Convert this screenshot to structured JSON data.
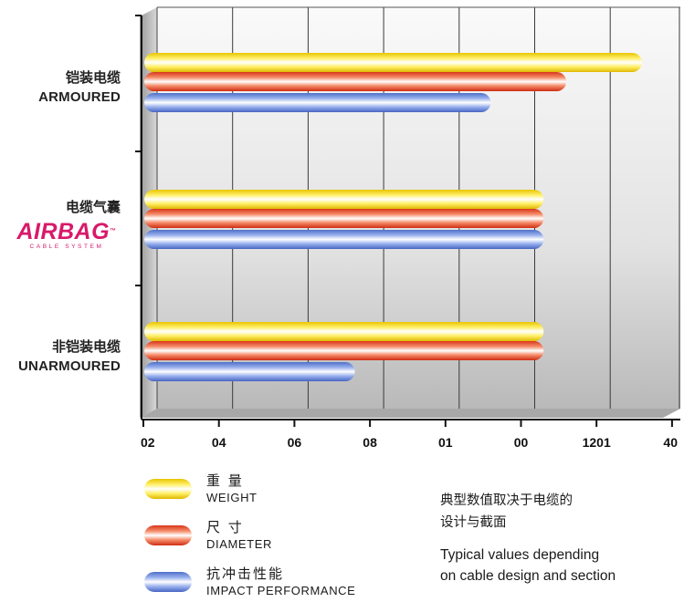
{
  "chart_data": {
    "type": "bar",
    "orientation": "horizontal",
    "x_tick_labels": [
      "02",
      "04",
      "06",
      "08",
      "01",
      "00",
      "1201",
      "40"
    ],
    "x_range_ticks": [
      0,
      7
    ],
    "grid": true,
    "categories": [
      {
        "zh": "铠装电缆",
        "en": "ARMOURED"
      },
      {
        "zh": "电缆气囊",
        "logo_text": "AIRBAG",
        "logo_tm": "™",
        "logo_sub": "CABLE SYSTEM"
      },
      {
        "zh": "非铠装电缆",
        "en": "UNARMOURED"
      }
    ],
    "series": [
      {
        "name": "WEIGHT",
        "name_zh": "重 量",
        "color": "#ffe12b",
        "values": [
          6.6,
          5.3,
          5.3
        ]
      },
      {
        "name": "DIAMETER",
        "name_zh": "尺 寸",
        "color": "#ee4a24",
        "values": [
          5.6,
          5.3,
          5.3
        ]
      },
      {
        "name": "IMPACT PERFORMANCE",
        "name_zh": "抗冲击性能",
        "color": "#6688d8",
        "values": [
          4.6,
          5.3,
          2.8
        ]
      }
    ]
  },
  "note": {
    "zh_line1": "典型数值取决于电缆的",
    "zh_line2": "设计与截面",
    "en_line1": "Typical values depending",
    "en_line2": "on cable design and section"
  }
}
